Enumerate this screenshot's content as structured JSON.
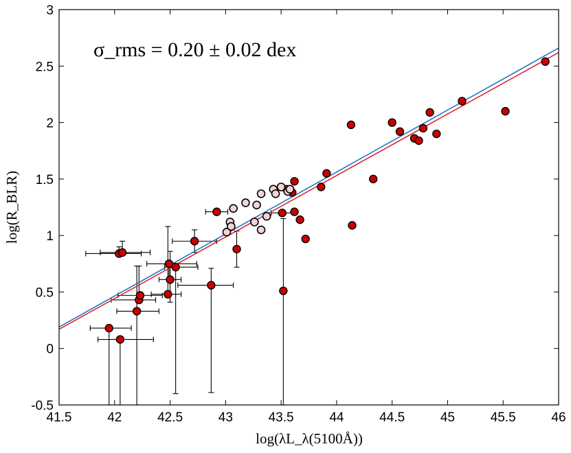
{
  "chart_data": {
    "type": "scatter",
    "title": "",
    "xlabel": "log(λL_λ(5100Å))",
    "ylabel": "log(R_BLR)",
    "xlim": [
      41.5,
      46
    ],
    "ylim": [
      -0.5,
      3
    ],
    "xticks": [
      "41.5",
      "42",
      "42.5",
      "43",
      "43.5",
      "44",
      "44.5",
      "45",
      "45.5",
      "46"
    ],
    "yticks": [
      "-0.5",
      "0",
      "0.5",
      "1",
      "1.5",
      "2",
      "2.5",
      "3"
    ],
    "annotation": "σ_rms = 0.20 ± 0.02 dex",
    "series": [
      {
        "name": "filled",
        "color": "#cc0000",
        "points": [
          {
            "x": 41.95,
            "y": 0.18,
            "xerr": [
              0.17,
              0.2
            ],
            "yerr": [
              0.9,
              0.0
            ]
          },
          {
            "x": 42.05,
            "y": 0.08,
            "xerr": [
              0.2,
              0.3
            ],
            "yerr": [
              0.6,
              0.0
            ]
          },
          {
            "x": 42.04,
            "y": 0.84,
            "xerr": [
              0.3,
              0.2
            ],
            "yerr": [
              0.0,
              0.06
            ]
          },
          {
            "x": 42.07,
            "y": 0.85,
            "xerr": [
              0.2,
              0.25
            ],
            "yerr": [
              0.0,
              0.1
            ]
          },
          {
            "x": 42.2,
            "y": 0.33,
            "xerr": [
              0.18,
              0.2
            ],
            "yerr": [
              0.9,
              0.4
            ]
          },
          {
            "x": 42.22,
            "y": 0.43,
            "xerr": [
              0.25,
              0.15
            ],
            "yerr": [
              0.0,
              0.3
            ]
          },
          {
            "x": 42.23,
            "y": 0.47,
            "xerr": [
              0.2,
              0.2
            ],
            "yerr": [
              0.0,
              0.0
            ]
          },
          {
            "x": 42.48,
            "y": 0.48,
            "xerr": [
              0.15,
              0.12
            ],
            "yerr": [
              0.0,
              0.6
            ]
          },
          {
            "x": 42.49,
            "y": 0.75,
            "xerr": [
              0.2,
              0.25
            ],
            "yerr": [
              0.15,
              0.0
            ]
          },
          {
            "x": 42.5,
            "y": 0.61,
            "xerr": [
              0.1,
              0.1
            ],
            "yerr": [
              0.2,
              0.25
            ]
          },
          {
            "x": 42.55,
            "y": 0.72,
            "xerr": [
              0.1,
              0.2
            ],
            "yerr": [
              1.12,
              0.0
            ]
          },
          {
            "x": 42.72,
            "y": 0.95,
            "xerr": [
              0.2,
              0.2
            ],
            "yerr": [
              0.1,
              0.1
            ]
          },
          {
            "x": 42.87,
            "y": 0.56,
            "xerr": [
              0.3,
              0.2
            ],
            "yerr": [
              0.95,
              0.15
            ]
          },
          {
            "x": 42.92,
            "y": 1.21,
            "xerr": [
              0.1,
              0.1
            ],
            "yerr": [
              0.0,
              0.0
            ]
          },
          {
            "x": 43.1,
            "y": 0.88,
            "xerr": [
              0.0,
              0.0
            ],
            "yerr": [
              0.16,
              0.16
            ]
          },
          {
            "x": 43.51,
            "y": 1.2,
            "xerr": [
              0.1,
              0.1
            ],
            "yerr": [
              0.0,
              0.0
            ]
          },
          {
            "x": 43.52,
            "y": 0.51,
            "xerr": [
              0.0,
              0.0
            ],
            "yerr": [
              1.01,
              0.64
            ]
          },
          {
            "x": 43.55,
            "y": 1.41,
            "xerr": [
              0.0,
              0.0
            ],
            "yerr": [
              0.0,
              0.0
            ]
          },
          {
            "x": 43.6,
            "y": 1.38,
            "xerr": [
              0.0,
              0.0
            ],
            "yerr": [
              0.0,
              0.0
            ]
          },
          {
            "x": 43.62,
            "y": 1.48,
            "xerr": [
              0.0,
              0.0
            ],
            "yerr": [
              0.0,
              0.0
            ]
          },
          {
            "x": 43.62,
            "y": 1.21,
            "xerr": [
              0.0,
              0.0
            ],
            "yerr": [
              0.0,
              0.0
            ]
          },
          {
            "x": 43.67,
            "y": 1.14,
            "xerr": [
              0.0,
              0.0
            ],
            "yerr": [
              0.0,
              0.0
            ]
          },
          {
            "x": 43.72,
            "y": 0.97,
            "xerr": [
              0.0,
              0.0
            ],
            "yerr": [
              0.0,
              0.0
            ]
          },
          {
            "x": 43.86,
            "y": 1.43,
            "xerr": [
              0.0,
              0.0
            ],
            "yerr": [
              0.0,
              0.0
            ]
          },
          {
            "x": 43.91,
            "y": 1.55,
            "xerr": [
              0.0,
              0.0
            ],
            "yerr": [
              0.0,
              0.0
            ]
          },
          {
            "x": 44.13,
            "y": 1.98,
            "xerr": [
              0.0,
              0.0
            ],
            "yerr": [
              0.0,
              0.0
            ]
          },
          {
            "x": 44.14,
            "y": 1.09,
            "xerr": [
              0.0,
              0.0
            ],
            "yerr": [
              0.0,
              0.0
            ]
          },
          {
            "x": 44.33,
            "y": 1.5,
            "xerr": [
              0.0,
              0.0
            ],
            "yerr": [
              0.0,
              0.0
            ]
          },
          {
            "x": 44.5,
            "y": 2.0,
            "xerr": [
              0.0,
              0.0
            ],
            "yerr": [
              0.0,
              0.0
            ]
          },
          {
            "x": 44.57,
            "y": 1.92,
            "xerr": [
              0.0,
              0.0
            ],
            "yerr": [
              0.0,
              0.0
            ]
          },
          {
            "x": 44.7,
            "y": 1.86,
            "xerr": [
              0.0,
              0.0
            ],
            "yerr": [
              0.0,
              0.0
            ]
          },
          {
            "x": 44.74,
            "y": 1.84,
            "xerr": [
              0.0,
              0.0
            ],
            "yerr": [
              0.0,
              0.0
            ]
          },
          {
            "x": 44.78,
            "y": 1.95,
            "xerr": [
              0.0,
              0.0
            ],
            "yerr": [
              0.0,
              0.0
            ]
          },
          {
            "x": 44.84,
            "y": 2.09,
            "xerr": [
              0.0,
              0.0
            ],
            "yerr": [
              0.0,
              0.0
            ]
          },
          {
            "x": 44.9,
            "y": 1.9,
            "xerr": [
              0.0,
              0.0
            ],
            "yerr": [
              0.0,
              0.0
            ]
          },
          {
            "x": 45.13,
            "y": 2.19,
            "xerr": [
              0.0,
              0.0
            ],
            "yerr": [
              0.0,
              0.0
            ]
          },
          {
            "x": 45.52,
            "y": 2.1,
            "xerr": [
              0.0,
              0.0
            ],
            "yerr": [
              0.0,
              0.0
            ]
          },
          {
            "x": 45.88,
            "y": 2.54,
            "xerr": [
              0.0,
              0.0
            ],
            "yerr": [
              0.0,
              0.0
            ]
          }
        ]
      },
      {
        "name": "open",
        "color": "#f2d4d4",
        "points": [
          {
            "x": 43.01,
            "y": 1.03,
            "xerr": [
              0.0,
              0.0
            ],
            "yerr": [
              0.0,
              0.0
            ]
          },
          {
            "x": 43.04,
            "y": 1.12,
            "xerr": [
              0.0,
              0.0
            ],
            "yerr": [
              0.0,
              0.0
            ]
          },
          {
            "x": 43.05,
            "y": 1.08,
            "xerr": [
              0.0,
              0.0
            ],
            "yerr": [
              0.0,
              0.0
            ]
          },
          {
            "x": 43.07,
            "y": 1.24,
            "xerr": [
              0.0,
              0.0
            ],
            "yerr": [
              0.0,
              0.0
            ]
          },
          {
            "x": 43.18,
            "y": 1.29,
            "xerr": [
              0.0,
              0.0
            ],
            "yerr": [
              0.0,
              0.0
            ]
          },
          {
            "x": 43.26,
            "y": 1.12,
            "xerr": [
              0.0,
              0.0
            ],
            "yerr": [
              0.0,
              0.0
            ]
          },
          {
            "x": 43.28,
            "y": 1.27,
            "xerr": [
              0.0,
              0.0
            ],
            "yerr": [
              0.0,
              0.0
            ]
          },
          {
            "x": 43.32,
            "y": 1.05,
            "xerr": [
              0.0,
              0.0
            ],
            "yerr": [
              0.0,
              0.0
            ]
          },
          {
            "x": 43.32,
            "y": 1.37,
            "xerr": [
              0.0,
              0.0
            ],
            "yerr": [
              0.0,
              0.0
            ]
          },
          {
            "x": 43.37,
            "y": 1.17,
            "xerr": [
              0.0,
              0.0
            ],
            "yerr": [
              0.0,
              0.0
            ]
          },
          {
            "x": 43.43,
            "y": 1.41,
            "xerr": [
              0.0,
              0.0
            ],
            "yerr": [
              0.0,
              0.0
            ]
          },
          {
            "x": 43.45,
            "y": 1.37,
            "xerr": [
              0.0,
              0.0
            ],
            "yerr": [
              0.0,
              0.0
            ]
          },
          {
            "x": 43.5,
            "y": 1.43,
            "xerr": [
              0.0,
              0.0
            ],
            "yerr": [
              0.0,
              0.0
            ]
          },
          {
            "x": 43.56,
            "y": 1.39,
            "xerr": [
              0.0,
              0.0
            ],
            "yerr": [
              0.0,
              0.0
            ]
          },
          {
            "x": 43.58,
            "y": 1.41,
            "xerr": [
              0.0,
              0.0
            ],
            "yerr": [
              0.0,
              0.0
            ]
          }
        ]
      }
    ],
    "fit_lines": [
      {
        "name": "blue fit",
        "color": "#1f77c4",
        "x": [
          41.5,
          46.0
        ],
        "y": [
          0.19,
          2.66
        ]
      },
      {
        "name": "red fit",
        "color": "#e0242a",
        "x": [
          41.5,
          46.0
        ],
        "y": [
          0.17,
          2.62
        ]
      }
    ]
  }
}
